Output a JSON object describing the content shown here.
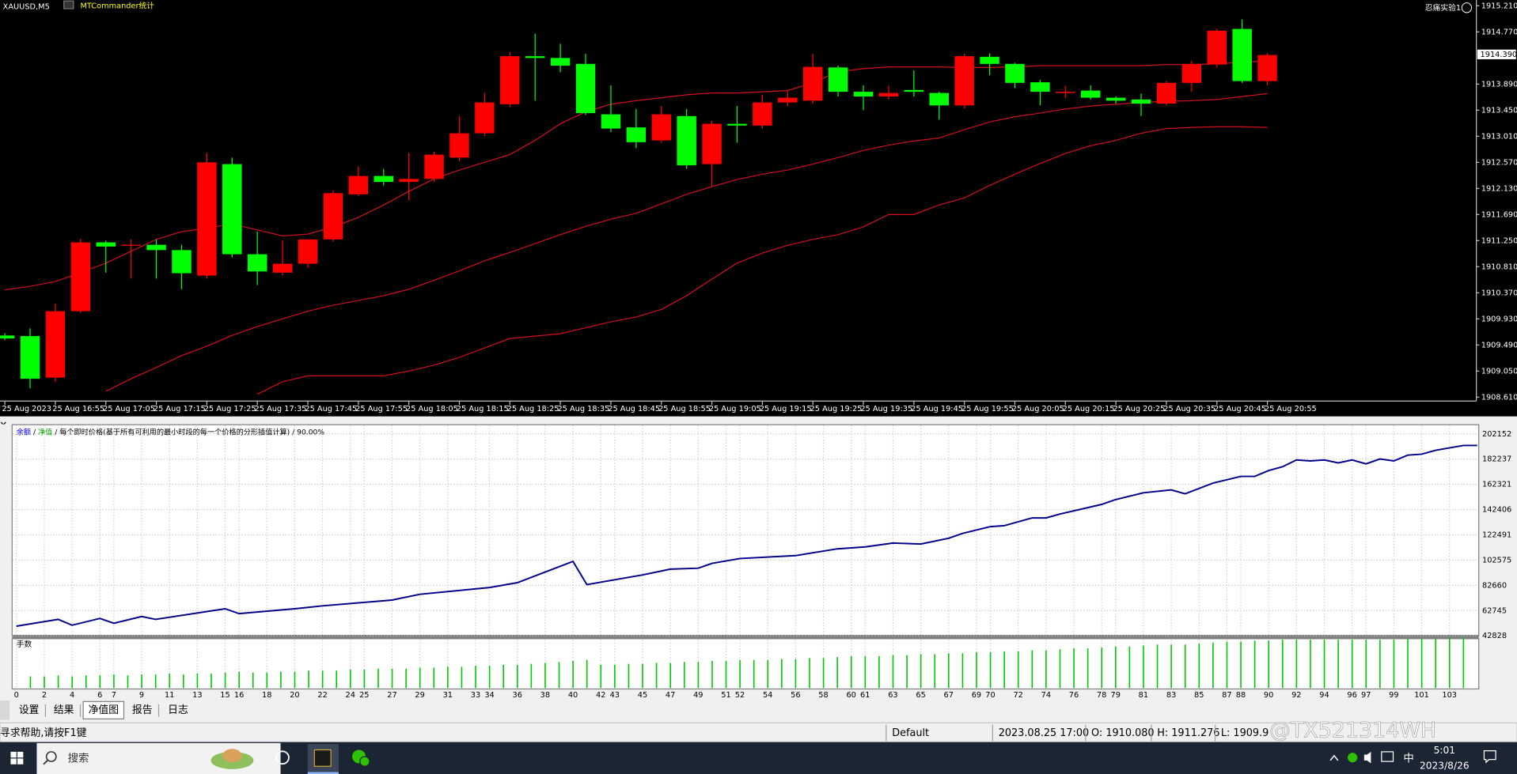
{
  "chart_data": [
    {
      "type": "candlestick",
      "title": "XAUUSD,M5",
      "indicator": "MTCommander统计",
      "expert": "忍痛实验1",
      "categories": [
        "25 Aug 2023",
        null,
        "25 Aug 16:55",
        null,
        "25 Aug 17:05",
        null,
        "25 Aug 17:15",
        null,
        "25 Aug 17:25",
        null,
        "25 Aug 17:35",
        null,
        "25 Aug 17:45",
        null,
        "25 Aug 17:55",
        null,
        "25 Aug 18:05",
        null,
        "25 Aug 18:15",
        null,
        "25 Aug 18:25",
        null,
        "25 Aug 18:35",
        null,
        "25 Aug 18:45",
        null,
        "25 Aug 18:55",
        null,
        "25 Aug 19:05",
        null,
        "25 Aug 19:15",
        null,
        "25 Aug 19:25",
        null,
        "25 Aug 19:35",
        null,
        "25 Aug 19:45",
        null,
        "25 Aug 19:55",
        null,
        "25 Aug 20:05",
        null,
        "25 Aug 20:15",
        null,
        "25 Aug 20:25",
        null,
        "25 Aug 20:35",
        null,
        "25 Aug 20:45",
        null,
        "25 Aug 20:55"
      ],
      "open": [
        1909.65,
        1909.64,
        1908.94,
        1910.06,
        1911.22,
        1911.17,
        1911.18,
        1911.09,
        1910.66,
        1912.54,
        1911.02,
        1910.71,
        1910.86,
        1911.27,
        1912.03,
        1912.34,
        1912.24,
        1912.29,
        1912.65,
        1913.06,
        1913.55,
        1914.36,
        1914.33,
        1914.23,
        1913.38,
        1913.16,
        1912.94,
        1913.35,
        1912.54,
        1913.22,
        1913.19,
        1913.58,
        1913.61,
        1914.17,
        1913.76,
        1913.68,
        1913.79,
        1913.74,
        1913.53,
        1914.35,
        1914.23,
        1913.92,
        1913.74,
        1913.78,
        1913.66,
        1913.63,
        1913.56,
        1913.91,
        1914.22,
        1914.82,
        1913.94
      ],
      "high": [
        1909.69,
        1909.77,
        1910.19,
        1911.28,
        1911.25,
        1911.27,
        1911.27,
        1911.18,
        1912.73,
        1912.65,
        1911.4,
        1911.25,
        1911.27,
        1912.1,
        1912.5,
        1912.46,
        1912.73,
        1912.75,
        1913.35,
        1913.74,
        1914.43,
        1914.74,
        1914.57,
        1914.4,
        1913.87,
        1913.47,
        1913.52,
        1913.47,
        1913.27,
        1913.52,
        1913.71,
        1913.78,
        1914.4,
        1914.2,
        1913.87,
        1913.86,
        1914.12,
        1913.76,
        1914.4,
        1914.41,
        1914.25,
        1913.96,
        1913.86,
        1913.87,
        1913.68,
        1913.73,
        1913.94,
        1914.28,
        1914.82,
        1914.98,
        1914.41
      ],
      "low": [
        1909.57,
        1908.76,
        1908.87,
        1910.03,
        1910.71,
        1910.61,
        1910.61,
        1910.43,
        1910.61,
        1910.97,
        1910.5,
        1910.66,
        1910.79,
        1911.23,
        1912.0,
        1912.18,
        1911.93,
        1912.24,
        1912.59,
        1913.01,
        1913.5,
        1913.61,
        1914.09,
        1913.37,
        1913.08,
        1912.81,
        1912.9,
        1912.46,
        1912.16,
        1912.9,
        1913.14,
        1913.52,
        1913.56,
        1913.68,
        1913.45,
        1913.63,
        1913.68,
        1913.29,
        1913.48,
        1914.04,
        1913.82,
        1913.53,
        1913.65,
        1913.63,
        1913.56,
        1913.35,
        1913.53,
        1913.76,
        1914.17,
        1913.91,
        1913.87
      ],
      "close": [
        1909.6,
        1908.92,
        1910.06,
        1911.22,
        1911.15,
        1911.18,
        1911.09,
        1910.7,
        1912.57,
        1911.02,
        1910.73,
        1910.86,
        1911.27,
        1912.05,
        1912.34,
        1912.24,
        1912.29,
        1912.7,
        1913.06,
        1913.58,
        1914.36,
        1914.33,
        1914.2,
        1913.4,
        1913.14,
        1912.91,
        1913.38,
        1912.52,
        1913.22,
        1913.19,
        1913.58,
        1913.66,
        1914.18,
        1913.76,
        1913.68,
        1913.74,
        1913.76,
        1913.53,
        1914.36,
        1914.23,
        1913.91,
        1913.76,
        1913.76,
        1913.66,
        1913.61,
        1913.56,
        1913.91,
        1914.23,
        1914.79,
        1913.94,
        1914.38
      ],
      "up_color": "#ff0000",
      "down_color": "#00ff00",
      "overlays": [
        {
          "color": "#d0101e",
          "values": [
            1910.42,
            1910.48,
            1910.56,
            1910.71,
            1910.87,
            1911.07,
            1911.27,
            1911.4,
            1911.46,
            1911.53,
            1911.43,
            1911.33,
            1911.36,
            1911.48,
            1911.64,
            1911.85,
            1912.08,
            1912.29,
            1912.44,
            1912.57,
            1912.7,
            1912.94,
            1913.22,
            1913.42,
            1913.55,
            1913.61,
            1913.66,
            1913.71,
            1913.74,
            1913.74,
            1913.76,
            1913.78,
            1913.91,
            1914.1,
            1914.15,
            1914.18,
            1914.18,
            1914.18,
            1914.17,
            1914.17,
            1914.18,
            1914.2,
            1914.2,
            1914.2,
            1914.2,
            1914.2,
            1914.22,
            1914.22,
            1914.23,
            1914.26,
            1914.28
          ]
        },
        {
          "color": "#d0101e",
          "values": [
            null,
            null,
            null,
            null,
            1908.71,
            1908.92,
            1909.11,
            1909.31,
            1909.47,
            1909.65,
            1909.8,
            1909.93,
            1910.06,
            1910.16,
            1910.24,
            1910.32,
            1910.43,
            1910.58,
            1910.74,
            1910.91,
            1911.05,
            1911.2,
            1911.35,
            1911.49,
            1911.61,
            1911.71,
            1911.87,
            1912.03,
            1912.16,
            1912.28,
            1912.37,
            1912.44,
            1912.54,
            1912.65,
            1912.77,
            1912.86,
            1912.93,
            1912.98,
            1913.12,
            1913.25,
            1913.34,
            1913.4,
            1913.47,
            1913.52,
            1913.55,
            1913.58,
            1913.6,
            1913.61,
            1913.63,
            1913.68,
            1913.73
          ]
        },
        {
          "color": "#d0101e",
          "values": [
            null,
            null,
            null,
            null,
            null,
            null,
            null,
            null,
            null,
            null,
            1908.66,
            1908.87,
            1908.97,
            1908.97,
            1908.97,
            1908.97,
            1909.05,
            1909.15,
            1909.28,
            1909.44,
            1909.6,
            1909.64,
            1909.68,
            1909.78,
            1909.88,
            1909.96,
            1910.09,
            1910.32,
            1910.6,
            1910.87,
            1911.04,
            1911.17,
            1911.27,
            1911.35,
            1911.48,
            1911.69,
            1911.69,
            1911.85,
            1911.97,
            1912.18,
            1912.37,
            1912.55,
            1912.72,
            1912.85,
            1912.94,
            1913.06,
            1913.14,
            1913.16,
            1913.17,
            1913.17,
            1913.16
          ]
        }
      ],
      "ylim": [
        1908.61,
        1915.21
      ],
      "yticks": [
        {
          "value": 1915.21,
          "label": "1915.210"
        },
        {
          "value": 1914.77,
          "label": "1914.770"
        },
        {
          "value": 1913.89,
          "label": "1913.890"
        },
        {
          "value": 1913.45,
          "label": "1913.450"
        },
        {
          "value": 1913.01,
          "label": "1913.010"
        },
        {
          "value": 1912.57,
          "label": "1912.570"
        },
        {
          "value": 1912.13,
          "label": "1912.130"
        },
        {
          "value": 1911.69,
          "label": "1911.690"
        },
        {
          "value": 1911.25,
          "label": "1911.250"
        },
        {
          "value": 1910.81,
          "label": "1910.810"
        },
        {
          "value": 1910.37,
          "label": "1910.370"
        },
        {
          "value": 1909.93,
          "label": "1909.930"
        },
        {
          "value": 1909.49,
          "label": "1909.490"
        },
        {
          "value": 1909.05,
          "label": "1909.050"
        },
        {
          "value": 1908.61,
          "label": "1908.610"
        }
      ],
      "current_price": {
        "value": 1914.39,
        "label": "1914.390"
      }
    },
    {
      "type": "line",
      "legend": [
        {
          "name": "余额",
          "color": "#0000ff"
        },
        {
          "name": "净值",
          "color": "#00a000"
        }
      ],
      "separator": " / ",
      "note": "每个即时价格(基于所有可利用的最小时段的每一个价格的分形插值计算)",
      "fraction": "90.00%",
      "color": "#00008b",
      "x": [
        0,
        3,
        4,
        6,
        7,
        9,
        10,
        15,
        16,
        20,
        22,
        27,
        29,
        34,
        36,
        38,
        40,
        41,
        43,
        45,
        47,
        49,
        50,
        52,
        56,
        59,
        61,
        63,
        65,
        67,
        68,
        70,
        71,
        73,
        74,
        75,
        78,
        79,
        81,
        83,
        84,
        86,
        88,
        89,
        90,
        91,
        92,
        93,
        94,
        95,
        96,
        97,
        98,
        99,
        100,
        101,
        102,
        104,
        105
      ],
      "values": [
        50450,
        55790,
        51220,
        56550,
        52740,
        58080,
        55790,
        64180,
        60360,
        64180,
        66460,
        71040,
        75610,
        80950,
        84760,
        93140,
        101530,
        83230,
        87050,
        90860,
        95430,
        96190,
        100000,
        103820,
        106100,
        111440,
        112960,
        116010,
        115250,
        119820,
        123640,
        128970,
        129730,
        135830,
        135830,
        138880,
        146500,
        150320,
        155650,
        157940,
        154890,
        163280,
        168610,
        168610,
        173190,
        176230,
        181570,
        180810,
        181570,
        179280,
        181570,
        178520,
        182330,
        180810,
        185380,
        186140,
        189190,
        193000,
        193000
      ],
      "xlim": [
        0,
        105
      ],
      "ylim": [
        42828,
        202152
      ],
      "yticks": [
        202152,
        182237,
        162321,
        142406,
        122491,
        102575,
        82660,
        62745,
        42828
      ],
      "xticks": [
        0,
        2,
        4,
        6,
        7,
        9,
        11,
        13,
        15,
        16,
        18,
        20,
        22,
        24,
        25,
        27,
        29,
        31,
        33,
        34,
        36,
        38,
        40,
        42,
        43,
        45,
        47,
        49,
        51,
        52,
        54,
        56,
        58,
        60,
        61,
        63,
        65,
        67,
        69,
        70,
        72,
        74,
        76,
        78,
        79,
        81,
        83,
        85,
        87,
        88,
        90,
        92,
        94,
        96,
        97,
        99,
        101,
        103
      ],
      "grid": true
    },
    {
      "type": "bar",
      "title": "手数",
      "color": "#00c800",
      "values": [
        1.2,
        1.2,
        1.3,
        1.2,
        1.3,
        1.3,
        1.4,
        1.3,
        1.4,
        1.4,
        1.5,
        1.4,
        1.5,
        1.5,
        1.6,
        1.7,
        1.6,
        1.6,
        1.7,
        1.7,
        1.8,
        1.8,
        1.8,
        1.9,
        1.9,
        2.0,
        2.0,
        2.0,
        2.1,
        2.1,
        2.2,
        2.2,
        2.3,
        2.3,
        2.4,
        2.4,
        2.5,
        2.6,
        2.7,
        2.8,
        2.9,
        2.4,
        2.4,
        2.5,
        2.5,
        2.6,
        2.6,
        2.7,
        2.7,
        2.8,
        2.8,
        2.9,
        2.9,
        2.9,
        3.0,
        3.0,
        3.1,
        3.1,
        3.2,
        3.3,
        3.3,
        3.3,
        3.4,
        3.4,
        3.5,
        3.5,
        3.6,
        3.6,
        3.7,
        3.7,
        3.8,
        3.8,
        3.9,
        3.9,
        4.0,
        4.1,
        4.1,
        4.2,
        4.3,
        4.3,
        4.4,
        4.5,
        4.5,
        4.5,
        4.6,
        4.7,
        4.8,
        4.8,
        4.9,
        4.9,
        5.0,
        5.0,
        5.0,
        5.0,
        5.0,
        5.0,
        5.0,
        5.0,
        5.0,
        5.1,
        5.1,
        5.1,
        5.2,
        5.2
      ]
    }
  ],
  "tabs": [
    "设置",
    "结果",
    "净值图",
    "报告",
    "日志"
  ],
  "active_tab": 2,
  "status_bar": [
    "寻求帮助,请按F1键",
    "Default",
    "2023.08.25 17:00",
    "O: 1910.080",
    "H: 1911.276",
    "L: 1909.9"
  ],
  "watermark": "@TX521314WH",
  "taskbar": {
    "search": "搜索",
    "ime": "中",
    "time": "5:01",
    "date": "2023/8/26"
  }
}
